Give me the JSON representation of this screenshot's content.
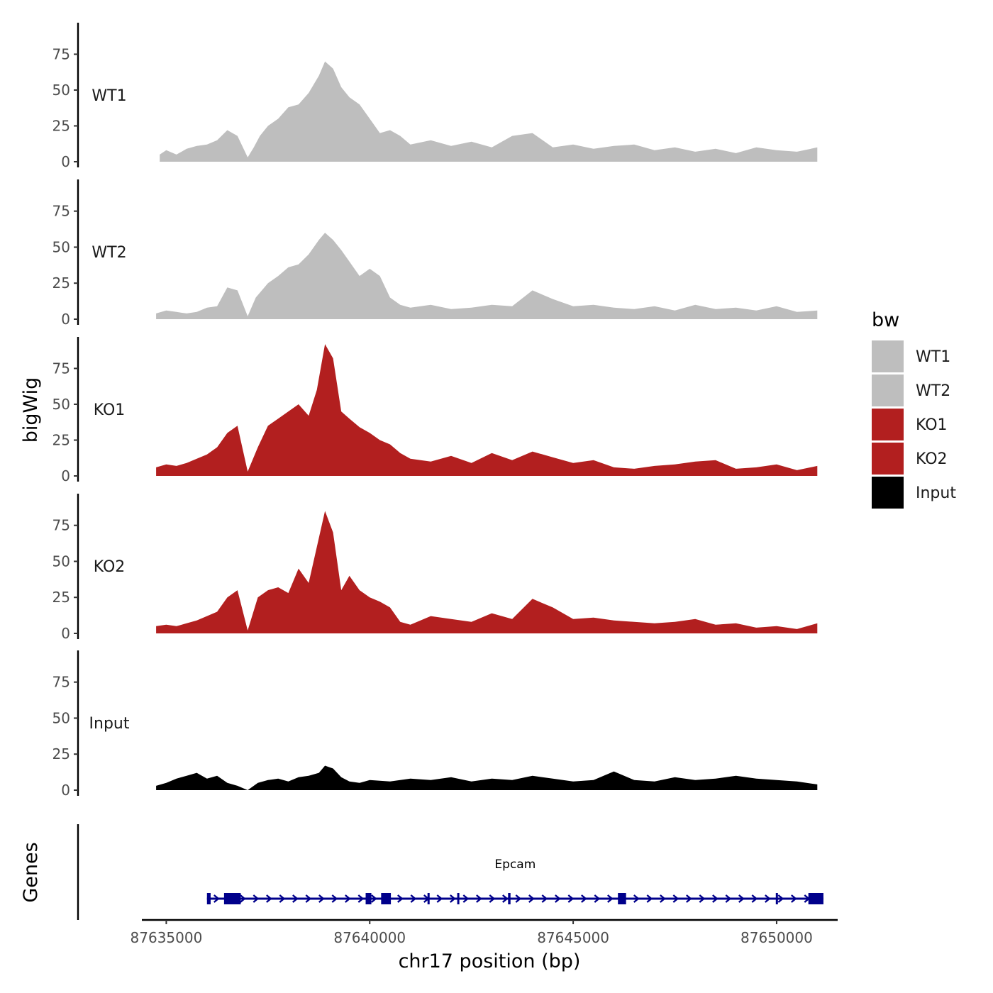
{
  "chart_data": {
    "type": "area",
    "y_axis_title": "bigWig",
    "gene_axis_title": "Genes",
    "x_axis_title": "chr17 position (bp)",
    "x_range": [
      87634400,
      87651500
    ],
    "x_ticks": [
      87635000,
      87640000,
      87645000,
      87650000
    ],
    "x_tick_labels": [
      "87635000",
      "87640000",
      "87645000",
      "87650000"
    ],
    "y_range": [
      0,
      97
    ],
    "y_ticks": [
      0,
      25,
      50,
      75
    ],
    "y_tick_labels": [
      "0",
      "25",
      "50",
      "75"
    ],
    "legend": {
      "title": "bw",
      "entries": [
        {
          "label": "WT1",
          "color": "#bebebe"
        },
        {
          "label": "WT2",
          "color": "#bebebe"
        },
        {
          "label": "KO1",
          "color": "#b21f1f"
        },
        {
          "label": "KO2",
          "color": "#b21f1f"
        },
        {
          "label": "Input",
          "color": "#000000"
        }
      ]
    },
    "series": [
      {
        "name": "WT1",
        "color": "#bebebe",
        "x": [
          87634840,
          87635000,
          87635250,
          87635500,
          87635750,
          87636000,
          87636250,
          87636500,
          87636750,
          87637000,
          87637150,
          87637300,
          87637500,
          87637750,
          87638000,
          87638250,
          87638500,
          87638750,
          87638900,
          87639100,
          87639300,
          87639500,
          87639750,
          87640000,
          87640250,
          87640500,
          87640750,
          87641000,
          87641500,
          87642000,
          87642500,
          87643000,
          87643500,
          87644000,
          87644500,
          87645000,
          87645500,
          87646000,
          87646500,
          87647000,
          87647500,
          87648000,
          87648500,
          87649000,
          87649500,
          87650000,
          87650500,
          87651000
        ],
        "values": [
          5,
          8,
          5,
          9,
          11,
          12,
          15,
          22,
          18,
          3,
          10,
          18,
          25,
          30,
          38,
          40,
          48,
          60,
          70,
          65,
          52,
          45,
          40,
          30,
          20,
          22,
          18,
          12,
          15,
          11,
          14,
          10,
          18,
          20,
          10,
          12,
          9,
          11,
          12,
          8,
          10,
          7,
          9,
          6,
          10,
          8,
          7,
          10
        ]
      },
      {
        "name": "WT2",
        "color": "#bebebe",
        "x": [
          87634750,
          87635000,
          87635250,
          87635500,
          87635750,
          87636000,
          87636250,
          87636500,
          87636750,
          87637000,
          87637200,
          87637500,
          87637750,
          87638000,
          87638250,
          87638500,
          87638750,
          87638900,
          87639100,
          87639300,
          87639500,
          87639750,
          87640000,
          87640250,
          87640500,
          87640750,
          87641000,
          87641500,
          87642000,
          87642500,
          87643000,
          87643500,
          87644000,
          87644500,
          87645000,
          87645500,
          87646000,
          87646500,
          87647000,
          87647500,
          87648000,
          87648500,
          87649000,
          87649500,
          87650000,
          87650500,
          87651000
        ],
        "values": [
          4,
          6,
          5,
          4,
          5,
          8,
          9,
          22,
          20,
          2,
          15,
          25,
          30,
          36,
          38,
          45,
          55,
          60,
          55,
          48,
          40,
          30,
          35,
          30,
          15,
          10,
          8,
          10,
          7,
          8,
          10,
          9,
          20,
          14,
          9,
          10,
          8,
          7,
          9,
          6,
          10,
          7,
          8,
          6,
          9,
          5,
          6
        ]
      },
      {
        "name": "KO1",
        "color": "#b21f1f",
        "x": [
          87634750,
          87635000,
          87635250,
          87635500,
          87635750,
          87636000,
          87636250,
          87636500,
          87636750,
          87637000,
          87637250,
          87637500,
          87637750,
          87638000,
          87638250,
          87638500,
          87638700,
          87638900,
          87639100,
          87639300,
          87639500,
          87639750,
          87640000,
          87640250,
          87640500,
          87640750,
          87641000,
          87641500,
          87642000,
          87642500,
          87643000,
          87643500,
          87644000,
          87644500,
          87645000,
          87645500,
          87646000,
          87646500,
          87647000,
          87647500,
          87648000,
          87648500,
          87649000,
          87649500,
          87650000,
          87650500,
          87651000
        ],
        "values": [
          6,
          8,
          7,
          9,
          12,
          15,
          20,
          30,
          35,
          3,
          20,
          35,
          40,
          45,
          50,
          42,
          60,
          92,
          82,
          45,
          40,
          34,
          30,
          25,
          22,
          16,
          12,
          10,
          14,
          9,
          16,
          11,
          17,
          13,
          9,
          11,
          6,
          5,
          7,
          8,
          10,
          11,
          5,
          6,
          8,
          4,
          7
        ]
      },
      {
        "name": "KO2",
        "color": "#b21f1f",
        "x": [
          87634750,
          87635000,
          87635250,
          87635500,
          87635750,
          87636000,
          87636250,
          87636500,
          87636750,
          87637000,
          87637250,
          87637500,
          87637750,
          87638000,
          87638250,
          87638500,
          87638700,
          87638900,
          87639100,
          87639300,
          87639500,
          87639750,
          87640000,
          87640250,
          87640500,
          87640750,
          87641000,
          87641500,
          87642000,
          87642500,
          87643000,
          87643500,
          87644000,
          87644500,
          87645000,
          87645500,
          87646000,
          87646500,
          87647000,
          87647500,
          87648000,
          87648500,
          87649000,
          87649500,
          87650000,
          87650500,
          87651000
        ],
        "values": [
          5,
          6,
          5,
          7,
          9,
          12,
          15,
          25,
          30,
          2,
          25,
          30,
          32,
          28,
          45,
          35,
          60,
          85,
          70,
          30,
          40,
          30,
          25,
          22,
          18,
          8,
          6,
          12,
          10,
          8,
          14,
          10,
          24,
          18,
          10,
          11,
          9,
          8,
          7,
          8,
          10,
          6,
          7,
          4,
          5,
          3,
          7
        ]
      },
      {
        "name": "Input",
        "color": "#000000",
        "x": [
          87634750,
          87635000,
          87635250,
          87635500,
          87635750,
          87636000,
          87636250,
          87636500,
          87636750,
          87637000,
          87637250,
          87637500,
          87637750,
          87638000,
          87638250,
          87638500,
          87638750,
          87638900,
          87639100,
          87639300,
          87639500,
          87639750,
          87640000,
          87640500,
          87641000,
          87641500,
          87642000,
          87642500,
          87643000,
          87643500,
          87644000,
          87644500,
          87645000,
          87645500,
          87646000,
          87646500,
          87647000,
          87647500,
          87648000,
          87648500,
          87649000,
          87649500,
          87650000,
          87650500,
          87651000
        ],
        "values": [
          3,
          5,
          8,
          10,
          12,
          8,
          10,
          5,
          3,
          0,
          5,
          7,
          8,
          6,
          9,
          10,
          12,
          17,
          15,
          9,
          6,
          5,
          7,
          6,
          8,
          7,
          9,
          6,
          8,
          7,
          10,
          8,
          6,
          7,
          13,
          7,
          6,
          9,
          7,
          8,
          10,
          8,
          7,
          6,
          4
        ]
      }
    ],
    "genes": [
      {
        "name": "Epcam",
        "color": "#00008b",
        "strand": "+",
        "start": 87636000,
        "end": 87651150,
        "exons": [
          [
            87636000,
            87636090
          ],
          [
            87636420,
            87636830
          ],
          [
            87639900,
            87640040
          ],
          [
            87640280,
            87640520
          ],
          [
            87641420,
            87641460
          ],
          [
            87642150,
            87642190
          ],
          [
            87643400,
            87643460
          ],
          [
            87646100,
            87646300
          ],
          [
            87649980,
            87650020
          ],
          [
            87650780,
            87651150
          ]
        ]
      }
    ]
  }
}
